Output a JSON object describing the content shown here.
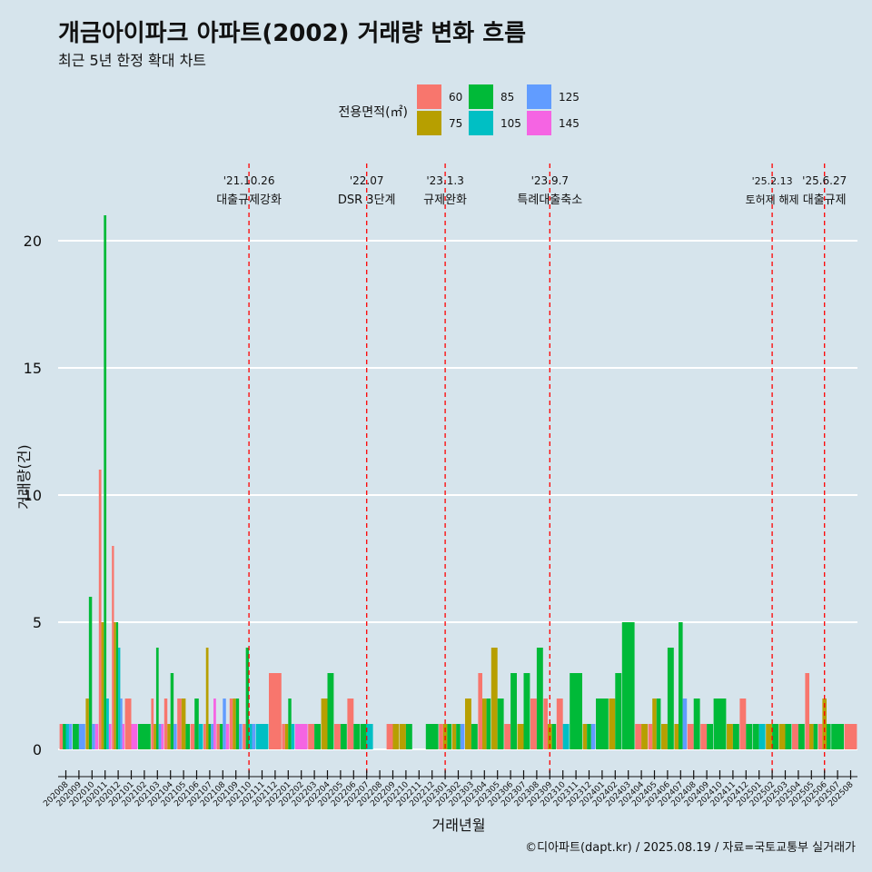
{
  "chart_data": {
    "type": "bar",
    "title": "개금아이파크 아파트(2002) 거래량 변화 흐름",
    "subtitle": "최근 5년 한정 확대 차트",
    "xlabel": "거래년월",
    "ylabel": "거래량(건)",
    "caption": "©디아파트(dapt.kr) / 2025.08.19 / 자료=국토교통부 실거래가",
    "ylim": [
      0,
      22
    ],
    "yticks": [
      0,
      5,
      10,
      15,
      20
    ],
    "legend": {
      "title": "전용면적(㎡)",
      "position": "top",
      "entries": [
        {
          "name": "60",
          "color": "#F8766D"
        },
        {
          "name": "75",
          "color": "#B79F00"
        },
        {
          "name": "85",
          "color": "#00BA38"
        },
        {
          "name": "105",
          "color": "#00BFC4"
        },
        {
          "name": "125",
          "color": "#619CFF"
        },
        {
          "name": "145",
          "color": "#F564E3"
        }
      ]
    },
    "categories": [
      "202008",
      "202009",
      "202010",
      "202011",
      "202012",
      "202101",
      "202102",
      "202103",
      "202104",
      "202105",
      "202106",
      "202107",
      "202108",
      "202109",
      "202110",
      "202111",
      "202112",
      "202201",
      "202202",
      "202203",
      "202204",
      "202205",
      "202206",
      "202207",
      "202208",
      "202209",
      "202210",
      "202211",
      "202212",
      "202301",
      "202302",
      "202303",
      "202304",
      "202305",
      "202306",
      "202307",
      "202308",
      "202309",
      "202310",
      "202311",
      "202312",
      "202401",
      "202402",
      "202403",
      "202404",
      "202405",
      "202406",
      "202407",
      "202408",
      "202409",
      "202410",
      "202411",
      "202412",
      "202501",
      "202502",
      "202503",
      "202504",
      "202505",
      "202506",
      "202507",
      "202508"
    ],
    "data": [
      {
        "month": "202008",
        "bars": [
          [
            "60",
            1
          ],
          [
            "85",
            1
          ],
          [
            "105",
            1
          ],
          [
            "125",
            1
          ]
        ]
      },
      {
        "month": "202009",
        "bars": [
          [
            "85",
            1
          ],
          [
            "125",
            1
          ]
        ]
      },
      {
        "month": "202010",
        "bars": [
          [
            "75",
            2
          ],
          [
            "85",
            6
          ],
          [
            "125",
            1
          ],
          [
            "145",
            1
          ]
        ]
      },
      {
        "month": "202011",
        "bars": [
          [
            "60",
            11
          ],
          [
            "75",
            5
          ],
          [
            "85",
            21
          ],
          [
            "105",
            2
          ],
          [
            "145",
            1
          ]
        ]
      },
      {
        "month": "202012",
        "bars": [
          [
            "60",
            8
          ],
          [
            "75",
            5
          ],
          [
            "85",
            5
          ],
          [
            "105",
            4
          ],
          [
            "125",
            2
          ],
          [
            "145",
            1
          ]
        ]
      },
      {
        "month": "202101",
        "bars": [
          [
            "60",
            2
          ],
          [
            "145",
            1
          ]
        ]
      },
      {
        "month": "202102",
        "bars": [
          [
            "85",
            1
          ]
        ]
      },
      {
        "month": "202103",
        "bars": [
          [
            "60",
            2
          ],
          [
            "75",
            1
          ],
          [
            "85",
            4
          ],
          [
            "125",
            1
          ],
          [
            "145",
            1
          ]
        ]
      },
      {
        "month": "202104",
        "bars": [
          [
            "60",
            2
          ],
          [
            "75",
            1
          ],
          [
            "85",
            3
          ],
          [
            "125",
            1
          ]
        ]
      },
      {
        "month": "202105",
        "bars": [
          [
            "60",
            2
          ],
          [
            "75",
            2
          ],
          [
            "85",
            1
          ]
        ]
      },
      {
        "month": "202106",
        "bars": [
          [
            "60",
            1
          ],
          [
            "85",
            2
          ],
          [
            "105",
            1
          ]
        ]
      },
      {
        "month": "202107",
        "bars": [
          [
            "60",
            1
          ],
          [
            "75",
            4
          ],
          [
            "85",
            1
          ],
          [
            "125",
            1
          ],
          [
            "145",
            2
          ]
        ]
      },
      {
        "month": "202108",
        "bars": [
          [
            "60",
            1
          ],
          [
            "85",
            1
          ],
          [
            "125",
            2
          ],
          [
            "145",
            1
          ]
        ]
      },
      {
        "month": "202109",
        "bars": [
          [
            "60",
            2
          ],
          [
            "75",
            2
          ],
          [
            "85",
            2
          ],
          [
            "125",
            1
          ]
        ]
      },
      {
        "month": "202110",
        "bars": [
          [
            "60",
            1
          ],
          [
            "85",
            4
          ],
          [
            "105",
            1
          ],
          [
            "125",
            1
          ]
        ]
      },
      {
        "month": "202111",
        "bars": [
          [
            "105",
            1
          ]
        ]
      },
      {
        "month": "202112",
        "bars": [
          [
            "60",
            3
          ]
        ]
      },
      {
        "month": "202201",
        "bars": [
          [
            "60",
            1
          ],
          [
            "75",
            1
          ],
          [
            "85",
            2
          ],
          [
            "105",
            1
          ]
        ]
      },
      {
        "month": "202202",
        "bars": [
          [
            "145",
            1
          ]
        ]
      },
      {
        "month": "202203",
        "bars": [
          [
            "60",
            1
          ],
          [
            "85",
            1
          ]
        ]
      },
      {
        "month": "202204",
        "bars": [
          [
            "75",
            2
          ],
          [
            "85",
            3
          ]
        ]
      },
      {
        "month": "202205",
        "bars": [
          [
            "60",
            1
          ],
          [
            "85",
            1
          ]
        ]
      },
      {
        "month": "202206",
        "bars": [
          [
            "60",
            2
          ],
          [
            "85",
            1
          ]
        ]
      },
      {
        "month": "202207",
        "bars": [
          [
            "85",
            1
          ],
          [
            "105",
            1
          ]
        ]
      },
      {
        "month": "202208",
        "bars": []
      },
      {
        "month": "202209",
        "bars": [
          [
            "60",
            1
          ],
          [
            "75",
            1
          ]
        ]
      },
      {
        "month": "202210",
        "bars": [
          [
            "75",
            1
          ],
          [
            "85",
            1
          ]
        ]
      },
      {
        "month": "202211",
        "bars": []
      },
      {
        "month": "202212",
        "bars": [
          [
            "85",
            1
          ]
        ]
      },
      {
        "month": "202301",
        "bars": [
          [
            "60",
            1
          ],
          [
            "75",
            1
          ],
          [
            "85",
            1
          ]
        ]
      },
      {
        "month": "202302",
        "bars": [
          [
            "75",
            1
          ],
          [
            "85",
            1
          ],
          [
            "125",
            1
          ]
        ]
      },
      {
        "month": "202303",
        "bars": [
          [
            "75",
            2
          ],
          [
            "85",
            1
          ]
        ]
      },
      {
        "month": "202304",
        "bars": [
          [
            "60",
            3
          ],
          [
            "75",
            2
          ],
          [
            "85",
            2
          ]
        ]
      },
      {
        "month": "202305",
        "bars": [
          [
            "75",
            4
          ],
          [
            "85",
            2
          ]
        ]
      },
      {
        "month": "202306",
        "bars": [
          [
            "60",
            1
          ],
          [
            "85",
            3
          ]
        ]
      },
      {
        "month": "202307",
        "bars": [
          [
            "75",
            1
          ],
          [
            "85",
            3
          ]
        ]
      },
      {
        "month": "202308",
        "bars": [
          [
            "60",
            2
          ],
          [
            "85",
            4
          ]
        ]
      },
      {
        "month": "202309",
        "bars": [
          [
            "60",
            2
          ],
          [
            "75",
            1
          ],
          [
            "85",
            1
          ]
        ]
      },
      {
        "month": "202310",
        "bars": [
          [
            "60",
            2
          ],
          [
            "105",
            1
          ]
        ]
      },
      {
        "month": "202311",
        "bars": [
          [
            "85",
            3
          ]
        ]
      },
      {
        "month": "202312",
        "bars": [
          [
            "75",
            1
          ],
          [
            "85",
            1
          ],
          [
            "125",
            1
          ]
        ]
      },
      {
        "month": "202401",
        "bars": [
          [
            "85",
            2
          ]
        ]
      },
      {
        "month": "202402",
        "bars": [
          [
            "75",
            2
          ],
          [
            "85",
            3
          ]
        ]
      },
      {
        "month": "202403",
        "bars": [
          [
            "85",
            5
          ]
        ]
      },
      {
        "month": "202404",
        "bars": [
          [
            "60",
            1
          ],
          [
            "75",
            1
          ]
        ]
      },
      {
        "month": "202405",
        "bars": [
          [
            "60",
            1
          ],
          [
            "75",
            2
          ],
          [
            "85",
            2
          ]
        ]
      },
      {
        "month": "202406",
        "bars": [
          [
            "75",
            1
          ],
          [
            "85",
            4
          ]
        ]
      },
      {
        "month": "202407",
        "bars": [
          [
            "75",
            1
          ],
          [
            "85",
            5
          ],
          [
            "125",
            2
          ]
        ]
      },
      {
        "month": "202408",
        "bars": [
          [
            "60",
            1
          ],
          [
            "85",
            2
          ]
        ]
      },
      {
        "month": "202409",
        "bars": [
          [
            "60",
            1
          ],
          [
            "85",
            1
          ]
        ]
      },
      {
        "month": "202410",
        "bars": [
          [
            "85",
            2
          ]
        ]
      },
      {
        "month": "202411",
        "bars": [
          [
            "75",
            1
          ],
          [
            "85",
            1
          ]
        ]
      },
      {
        "month": "202412",
        "bars": [
          [
            "60",
            2
          ],
          [
            "85",
            1
          ]
        ]
      },
      {
        "month": "202501",
        "bars": [
          [
            "85",
            1
          ],
          [
            "105",
            1
          ]
        ]
      },
      {
        "month": "202502",
        "bars": [
          [
            "75",
            1
          ],
          [
            "85",
            1
          ]
        ]
      },
      {
        "month": "202503",
        "bars": [
          [
            "75",
            1
          ],
          [
            "85",
            1
          ]
        ]
      },
      {
        "month": "202504",
        "bars": [
          [
            "60",
            1
          ],
          [
            "85",
            1
          ]
        ]
      },
      {
        "month": "202505",
        "bars": [
          [
            "60",
            3
          ],
          [
            "75",
            1
          ],
          [
            "85",
            1
          ]
        ]
      },
      {
        "month": "202506",
        "bars": [
          [
            "60",
            1
          ],
          [
            "75",
            2
          ],
          [
            "85",
            1
          ]
        ]
      },
      {
        "month": "202507",
        "bars": [
          [
            "85",
            1
          ]
        ]
      },
      {
        "month": "202508",
        "bars": [
          [
            "60",
            1
          ]
        ]
      }
    ],
    "annotations": [
      {
        "month": "202110",
        "date": "'21.10.26",
        "text": "대출규제강화"
      },
      {
        "month": "202207",
        "date": "'22.07",
        "text": "DSR 3단계"
      },
      {
        "month": "202301",
        "date": "'23.1.3",
        "text": "규제완화"
      },
      {
        "month": "202309",
        "date": "'23.9.7",
        "text": "특례대출축소"
      },
      {
        "month": "202502",
        "date": "'25.2.13",
        "text": "토허제 해제"
      },
      {
        "month": "202506",
        "date": "'25.6.27",
        "text": "대출규제"
      }
    ]
  }
}
